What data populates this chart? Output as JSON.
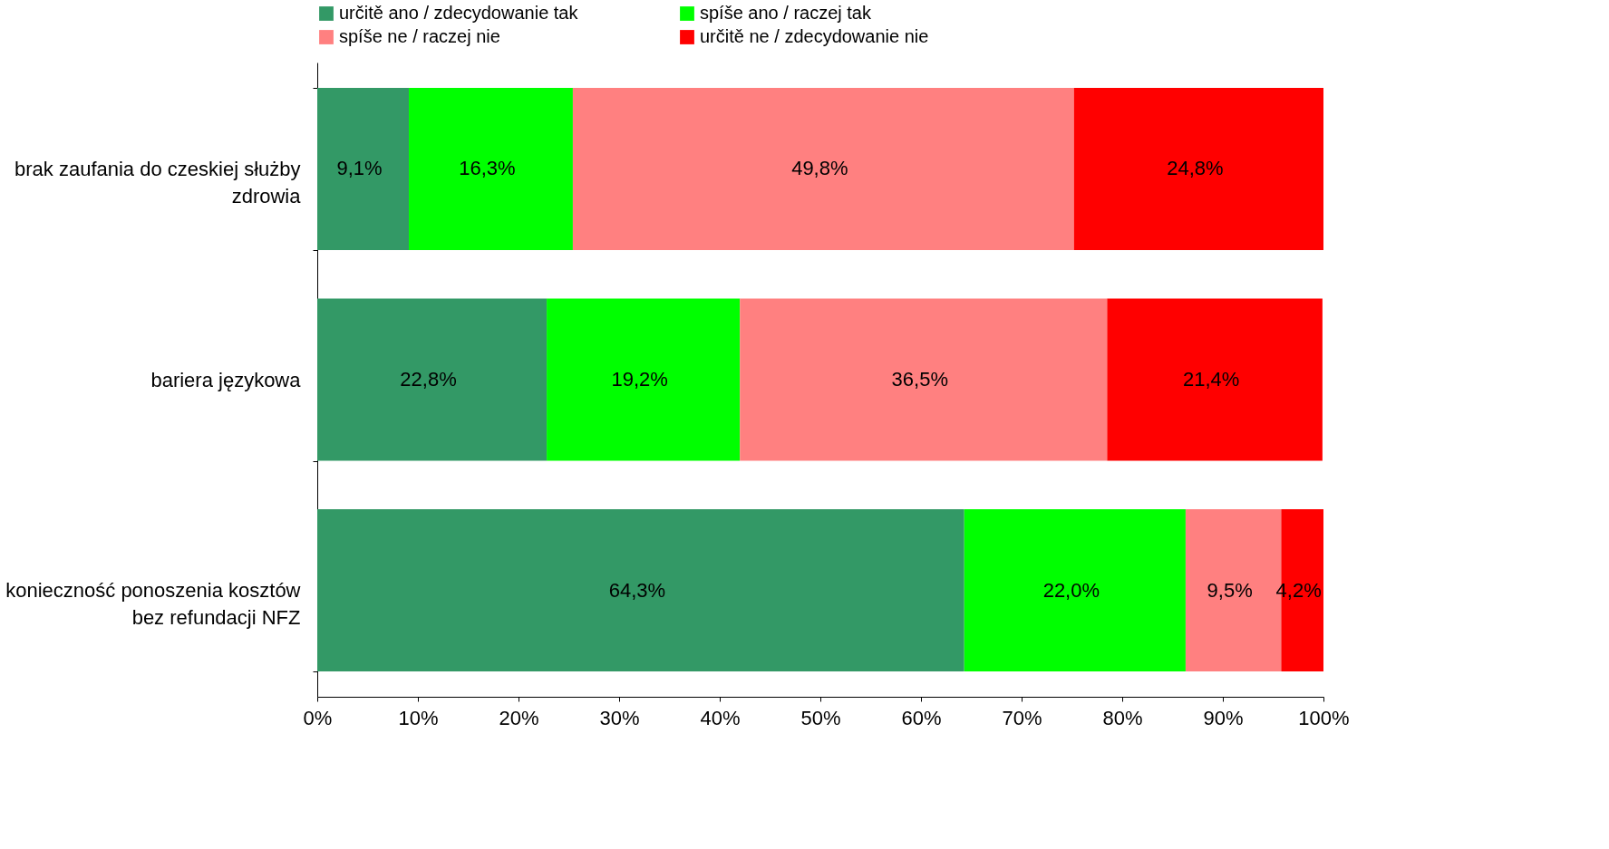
{
  "chart_data": {
    "type": "bar",
    "orientation": "horizontal",
    "stacked": true,
    "categories": [
      "brak zaufania do czeskiej służby zdrowia",
      "bariera językowa",
      "konieczność ponoszenia kosztów bez refundacji NFZ"
    ],
    "series": [
      {
        "name": "určitě ano / zdecydowanie tak",
        "color": "#339966",
        "values": [
          9.1,
          22.8,
          64.3
        ],
        "value_labels": [
          "9,1%",
          "22,8%",
          "64,3%"
        ]
      },
      {
        "name": "spíše ano / raczej tak",
        "color": "#00ff00",
        "values": [
          16.3,
          19.2,
          22.0
        ],
        "value_labels": [
          "16,3%",
          "19,2%",
          "22,0%"
        ]
      },
      {
        "name": "spíše ne / raczej nie",
        "color": "#ff8080",
        "values": [
          49.8,
          36.5,
          9.5
        ],
        "value_labels": [
          "49,8%",
          "36,5%",
          "9,5%"
        ]
      },
      {
        "name": "určitě ne / zdecydowanie nie",
        "color": "#ff0000",
        "values": [
          24.8,
          21.4,
          4.2
        ],
        "value_labels": [
          "24,8%",
          "21,4%",
          "4,2%"
        ]
      }
    ],
    "xlim": [
      0,
      100
    ],
    "xticks": [
      {
        "value": 0,
        "label": "0%"
      },
      {
        "value": 10,
        "label": "10%"
      },
      {
        "value": 20,
        "label": "20%"
      },
      {
        "value": 30,
        "label": "30%"
      },
      {
        "value": 40,
        "label": "40%"
      },
      {
        "value": 50,
        "label": "50%"
      },
      {
        "value": 60,
        "label": "60%"
      },
      {
        "value": 70,
        "label": "70%"
      },
      {
        "value": 80,
        "label": "80%"
      },
      {
        "value": 90,
        "label": "90%"
      },
      {
        "value": 100,
        "label": "100%"
      }
    ],
    "grid": false,
    "legend": "top"
  }
}
